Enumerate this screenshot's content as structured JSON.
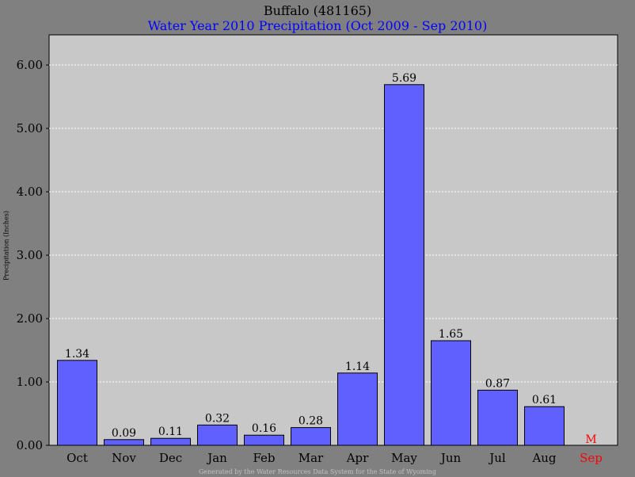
{
  "chart_data": {
    "type": "bar",
    "title": "Buffalo (481165)",
    "subtitle": "Water Year 2010 Precipitation (Oct 2009 - Sep 2010)",
    "ylabel": "Precipitation (Inches)",
    "xlabel": "",
    "ylim": [
      0,
      6.0
    ],
    "yticks": [
      "0.00",
      "1.00",
      "2.00",
      "3.00",
      "4.00",
      "5.00",
      "6.00"
    ],
    "grid": true,
    "categories": [
      "Oct",
      "Nov",
      "Dec",
      "Jan",
      "Feb",
      "Mar",
      "Apr",
      "May",
      "Jun",
      "Jul",
      "Aug",
      "Sep"
    ],
    "values": [
      1.34,
      0.09,
      0.11,
      0.32,
      0.16,
      0.28,
      1.14,
      5.69,
      1.65,
      0.87,
      0.61,
      null
    ],
    "value_labels": [
      "1.34",
      "0.09",
      "0.11",
      "0.32",
      "0.16",
      "0.28",
      "1.14",
      "5.69",
      "1.65",
      "0.87",
      "0.61",
      "M"
    ],
    "missing_categories": [
      "Sep"
    ],
    "footer": "Generated by the Water Resources Data System for the State of Wyoming",
    "colors": {
      "background": "#808080",
      "plot_area": "#c8c8c8",
      "bar_fill": "#6060ff",
      "bar_stroke": "#000000",
      "grid": "#ffffff",
      "title": "#000000",
      "subtitle": "#0000ff",
      "missing": "#ff0000"
    }
  }
}
